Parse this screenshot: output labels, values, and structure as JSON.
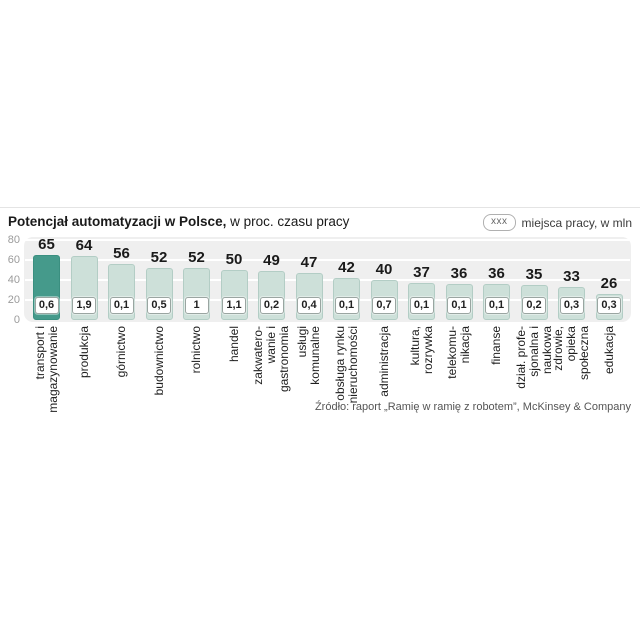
{
  "header": {
    "title_bold": "Potencjał automatyzacji  w Polsce,",
    "title_regular": " w proc. czasu pracy",
    "legend_chip": "xxx",
    "legend_label": "miejsca pracy, w mln"
  },
  "source": "Źródło: raport „Ramię w ramię z robotem”, McKinsey & Company",
  "chart_data": {
    "type": "bar",
    "title": "Potencjał automatyzacji w Polsce, w proc. czasu pracy",
    "ylabel": "proc. czasu pracy",
    "ylim": [
      0,
      80
    ],
    "yticks": [
      0,
      20,
      40,
      60,
      80
    ],
    "grid": true,
    "legend_position": "top-right",
    "highlight_index": 0,
    "colors": {
      "bar_fill": "#cde0d9",
      "bar_border": "#b3cdc5",
      "highlight_fill": "#459a8b",
      "highlight_border": "#3a8f80",
      "plot_bg": "#efefef",
      "gridline": "#ffffff"
    },
    "categories": [
      "transport i magazynowanie",
      "produkcja",
      "górnictwo",
      "budownictwo",
      "rolnictwo",
      "handel",
      "zakwaterowanie i gastronomia",
      "usługi komunalne",
      "obsługa rynku nieruchomości",
      "administracja",
      "kultura, rozrywka",
      "telekomunikacja",
      "finanse",
      "dział. profesjonalna i naukowa",
      "zdrowie, opieka społeczna",
      "edukacja"
    ],
    "category_lines": [
      [
        "transport i",
        "magazynowanie"
      ],
      [
        "produkcja"
      ],
      [
        "górnictwo"
      ],
      [
        "budownictwo"
      ],
      [
        "rolnictwo"
      ],
      [
        "handel"
      ],
      [
        "zakwatero-",
        "wanie i",
        "gastronomia"
      ],
      [
        "usługi",
        "komunalne"
      ],
      [
        "obsługa rynku",
        "nieruchomości"
      ],
      [
        "administracja"
      ],
      [
        "kultura,",
        "rozrywka"
      ],
      [
        "telekomu-",
        "nikacja"
      ],
      [
        "finanse"
      ],
      [
        "dział. profe-",
        "sjonalna i",
        "naukowa"
      ],
      [
        "zdrowie,",
        "opieka",
        "społeczna"
      ],
      [
        "edukacja"
      ]
    ],
    "values": [
      65,
      64,
      56,
      52,
      52,
      50,
      49,
      47,
      42,
      40,
      37,
      36,
      36,
      35,
      33,
      26
    ],
    "jobs_mln": [
      "0,6",
      "1,9",
      "0,1",
      "0,5",
      "1",
      "1,1",
      "0,2",
      "0,4",
      "0,1",
      "0,7",
      "0,1",
      "0,1",
      "0,1",
      "0,2",
      "0,3",
      "0,3"
    ]
  }
}
